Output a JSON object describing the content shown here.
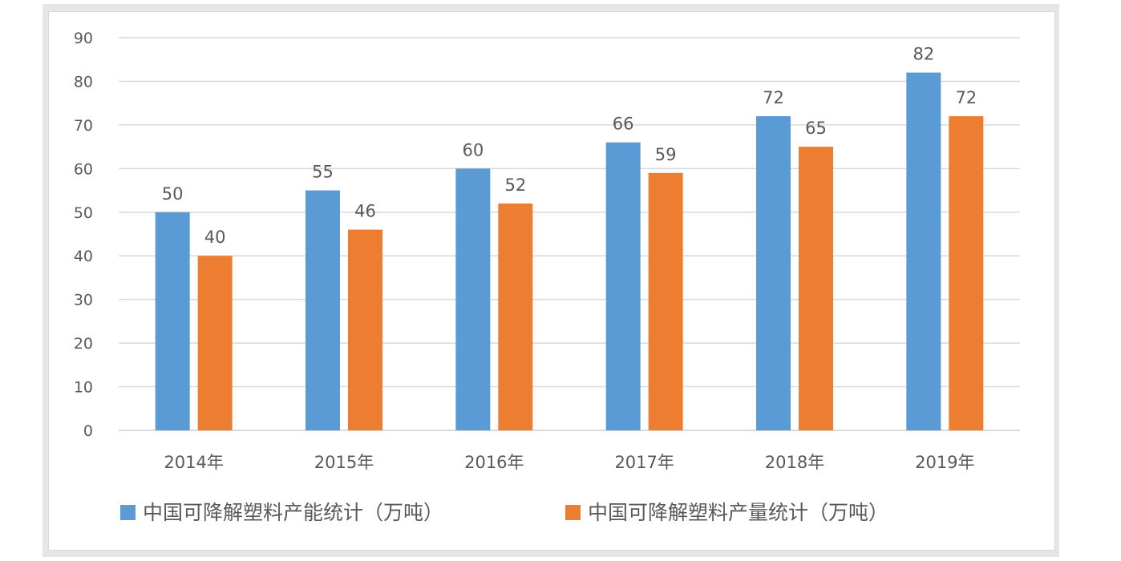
{
  "chart_data": {
    "type": "bar",
    "title": "",
    "xlabel": "",
    "ylabel": "",
    "categories": [
      "2014年",
      "2015年",
      "2016年",
      "2017年",
      "2018年",
      "2019年"
    ],
    "series": [
      {
        "name": "中国可降解塑料产能统计（万吨）",
        "values": [
          50,
          55,
          60,
          66,
          72,
          82
        ],
        "color": "#5b9bd5"
      },
      {
        "name": "中国可降解塑料产量统计（万吨）",
        "values": [
          40,
          46,
          52,
          59,
          65,
          72
        ],
        "color": "#ed7d31"
      }
    ],
    "ylim": [
      0,
      90
    ],
    "yticks": [
      0,
      10,
      20,
      30,
      40,
      50,
      60,
      70,
      80,
      90
    ],
    "grid": true,
    "data_labels": true,
    "legend": "bottom"
  }
}
